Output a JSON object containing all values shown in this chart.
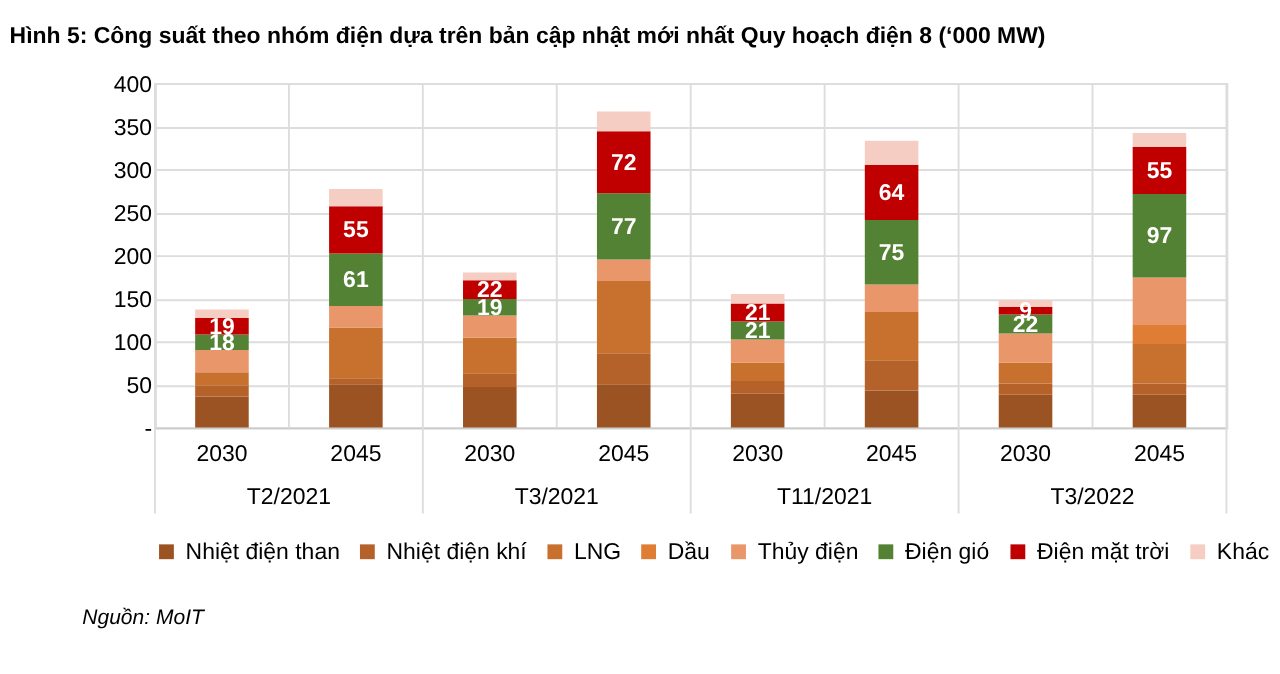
{
  "chart_data": {
    "type": "bar",
    "stacked": true,
    "title": "Hình 5: Công suất theo nhóm điện dựa trên bản cập nhật mới nhất Quy hoạch điện 8 (‘000 MW)",
    "categories": [
      "2030",
      "2045",
      "2030",
      "2045",
      "2030",
      "2045",
      "2030",
      "2045"
    ],
    "series": [
      {
        "name": "Nhiệt điện than",
        "color": "#9c5324",
        "values": [
          36,
          50,
          47,
          50,
          39,
          43,
          38,
          38
        ]
      },
      {
        "name": "Nhiệt điện khí",
        "color": "#b5622a",
        "values": [
          13,
          7,
          16,
          36,
          15,
          35,
          13,
          13
        ]
      },
      {
        "name": "LNG",
        "color": "#c8702e",
        "values": [
          15,
          59,
          41,
          84,
          21,
          56,
          24,
          46
        ]
      },
      {
        "name": "Dầu",
        "color": "#e07d34",
        "values": [
          0,
          0,
          0,
          0,
          0,
          0,
          0,
          22
        ]
      },
      {
        "name": "Thủy điện",
        "color": "#e9966a",
        "values": [
          26,
          25,
          26,
          25,
          27,
          32,
          34,
          55
        ]
      },
      {
        "name": "Điện gió",
        "color": "#548235",
        "values": [
          18,
          61,
          19,
          77,
          21,
          75,
          22,
          97
        ],
        "value_labels": [
          "18",
          "61",
          "19",
          "77",
          "21",
          "75",
          "22",
          "97"
        ]
      },
      {
        "name": "Điện mặt trời",
        "color": "#c00000",
        "values": [
          19,
          55,
          22,
          72,
          21,
          64,
          9,
          55
        ],
        "value_labels": [
          "19",
          "55",
          "22",
          "72",
          "21",
          "64",
          "9",
          "55"
        ]
      },
      {
        "name": "Khác",
        "color": "#f5cdc3",
        "values": [
          10,
          20,
          9,
          23,
          11,
          28,
          8,
          16
        ]
      }
    ],
    "ylim": [
      0,
      400
    ],
    "yticks": [
      {
        "value": 0,
        "label": "-"
      },
      50,
      100,
      150,
      200,
      250,
      300,
      350,
      400
    ],
    "grid": true,
    "legend": "bottom",
    "annotations": [
      "T2/2021",
      "T3/2021",
      "T11/2021",
      "T3/2022",
      "Nguồn: MoIT"
    ]
  }
}
